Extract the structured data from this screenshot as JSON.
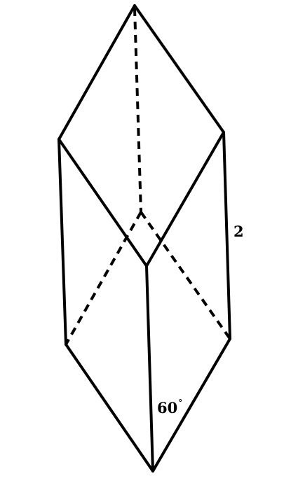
{
  "diagram": {
    "labels": {
      "edge_length": "2",
      "angle_value": "60",
      "angle_unit": "°"
    }
  }
}
